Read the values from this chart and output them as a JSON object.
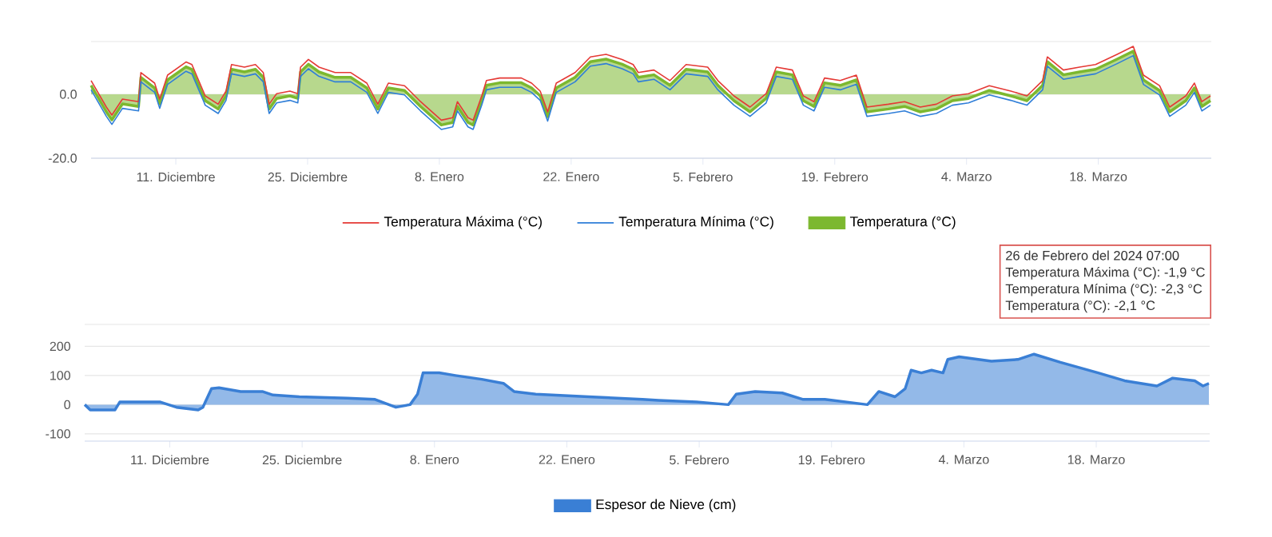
{
  "chart_data": [
    {
      "type": "area",
      "x": [
        "2023-12-02T00:00",
        "2023-12-03T15:00",
        "2023-12-04T05:00",
        "2023-12-05T08:00",
        "2023-12-07T01:00",
        "2023-12-07T07:00",
        "2023-12-08T18:00",
        "2023-12-09T07:00",
        "2023-12-10T03:00",
        "2023-12-12T02:00",
        "2023-12-12T17:00",
        "2023-12-14T03:00",
        "2023-12-15T12:00",
        "2023-12-16T08:00",
        "2023-12-16T22:00",
        "2023-12-18T07:00",
        "2023-12-19T11:00",
        "2023-12-20T07:00",
        "2023-12-20T22:00",
        "2023-12-21T17:00",
        "2023-12-23T03:00",
        "2023-12-23T23:00",
        "2023-12-24T06:00",
        "2023-12-25T02:00",
        "2023-12-26T05:00",
        "2023-12-27T22:00",
        "2023-12-29T14:00",
        "2023-12-31T07:00",
        "2024-01-01T11:00",
        "2024-01-02T14:00",
        "2024-01-04T07:00",
        "2024-01-06T00:00",
        "2024-01-08T05:00",
        "2024-01-09T10:00",
        "2024-01-09T22:00",
        "2024-01-11T01:00",
        "2024-01-11T14:00",
        "2024-01-12T12:00",
        "2024-01-13T00:00",
        "2024-01-14T10:00",
        "2024-01-16T17:00",
        "2024-01-17T19:00",
        "2024-01-18T17:00",
        "2024-01-19T12:00",
        "2024-01-20T10:00",
        "2024-01-22T10:00",
        "2024-01-24T01:00",
        "2024-01-25T17:00",
        "2024-01-27T10:00",
        "2024-01-28T14:00",
        "2024-01-29T03:00",
        "2024-01-30T19:00",
        "2024-02-01T12:00",
        "2024-02-03T05:00",
        "2024-02-05T12:00",
        "2024-02-06T14:00",
        "2024-02-08T07:00",
        "2024-02-10T00:00",
        "2024-02-11T17:00",
        "2024-02-12T19:00",
        "2024-02-14T12:00",
        "2024-02-15T16:00",
        "2024-02-16T19:00",
        "2024-02-17T22:00",
        "2024-02-19T14:00",
        "2024-02-21T07:00",
        "2024-02-22T10:00",
        "2024-02-24T17:00",
        "2024-02-26T10:00",
        "2024-02-28T02:00",
        "2024-02-29T19:00",
        "2024-03-02T12:00",
        "2024-03-04T05:00",
        "2024-03-06T10:00",
        "2024-03-08T17:00",
        "2024-03-10T10:00",
        "2024-03-12T02:00",
        "2024-03-12T14:00",
        "2024-03-14T07:00",
        "2024-03-16T00:00",
        "2024-03-17T17:00",
        "2024-03-20T00:00",
        "2024-03-21T17:00",
        "2024-03-22T19:00",
        "2024-03-24T12:00",
        "2024-03-25T14:00",
        "2024-03-27T07:00",
        "2024-03-28T05:00",
        "2024-03-29T00:00",
        "2024-03-29T22:00"
      ],
      "series": [
        {
          "name": "Temperatura Máxima (°C)",
          "type": "line",
          "color": "#e53935",
          "values": [
            4.3,
            -4,
            -6.5,
            -1.5,
            -2.3,
            6.8,
            3.5,
            -1.5,
            6,
            10.1,
            9.3,
            -0.5,
            -3.1,
            1,
            9.3,
            8.5,
            9.3,
            6.8,
            -3.1,
            0.2,
            1,
            0.2,
            8.5,
            10.9,
            8.5,
            6.8,
            6.8,
            3.5,
            -3.1,
            3.5,
            2.7,
            -2.3,
            -8.1,
            -7.3,
            -2.3,
            -7.3,
            -8.1,
            -0.5,
            4.3,
            5.1,
            5.1,
            3.5,
            1,
            -5.5,
            3.5,
            6.8,
            11.7,
            12.5,
            10.9,
            9.3,
            6.8,
            7.6,
            4.3,
            9.3,
            8.5,
            4.3,
            -0.5,
            -4,
            0.2,
            8.5,
            7.6,
            -0.5,
            -2.3,
            5.1,
            4.3,
            6,
            -4,
            -3.1,
            -2.3,
            -4,
            -3.1,
            -0.5,
            0.2,
            2.7,
            1,
            -0.5,
            4.3,
            11.7,
            7.6,
            8.5,
            9.3,
            12.5,
            15,
            6,
            2.7,
            -4,
            -0.5,
            3.5,
            -2.3,
            -0.5
          ]
        },
        {
          "name": "Temperatura Mínima (°C)",
          "type": "line",
          "color": "#2f7ed8",
          "values": [
            1.4,
            -6.9,
            -9.4,
            -4.4,
            -5.2,
            3.9,
            0.6,
            -4.4,
            3.1,
            7.2,
            6.4,
            -3.4,
            -6,
            -1.9,
            6.4,
            5.6,
            6.4,
            3.9,
            -6,
            -2.7,
            -1.9,
            -2.7,
            5.6,
            8,
            5.6,
            3.9,
            3.9,
            0.6,
            -6,
            0.6,
            -0.2,
            -5.2,
            -11,
            -10.2,
            -5.2,
            -10.2,
            -11,
            -3.4,
            1.4,
            2.2,
            2.2,
            0.6,
            -1.9,
            -8.4,
            0.6,
            3.9,
            8.8,
            9.6,
            8,
            6.4,
            3.9,
            4.7,
            1.4,
            6.4,
            5.6,
            1.4,
            -3.4,
            -6.9,
            -2.7,
            5.6,
            4.7,
            -3.4,
            -5.2,
            2.2,
            1.4,
            3.1,
            -6.9,
            -6,
            -5.2,
            -6.9,
            -6,
            -3.4,
            -2.7,
            -0.2,
            -1.9,
            -3.4,
            1.4,
            8.8,
            4.7,
            5.6,
            6.4,
            9.6,
            12.1,
            3.1,
            -0.2,
            -6.9,
            -3.4,
            0.6,
            -5.2,
            -3.4
          ]
        },
        {
          "name": "Temperatura (°C)",
          "type": "area",
          "color": "#7cb82f",
          "values": [
            2.8,
            -5.5,
            -8,
            -3,
            -3.8,
            5.3,
            2,
            -3,
            4.5,
            8.6,
            7.8,
            -2,
            -4.6,
            -0.5,
            7.8,
            7,
            7.8,
            5.3,
            -4.6,
            -1.3,
            -0.5,
            -1.3,
            7,
            9.4,
            7,
            5.3,
            5.3,
            2,
            -4.6,
            2,
            1.2,
            -3.8,
            -9.6,
            -8.8,
            -3.8,
            -8.8,
            -9.6,
            -2,
            2.8,
            3.6,
            3.6,
            2,
            -0.5,
            -7,
            2,
            5.3,
            10.2,
            11,
            9.4,
            7.8,
            5.3,
            6.1,
            2.8,
            7.8,
            7,
            2.8,
            -2,
            -5.5,
            -1.3,
            7,
            6.1,
            -2,
            -3.8,
            3.6,
            2.8,
            4.5,
            -5.5,
            -4.6,
            -3.8,
            -5.5,
            -4.6,
            -2,
            -1.3,
            1.2,
            -0.5,
            -2,
            2.8,
            10.2,
            6.1,
            7,
            7.8,
            11,
            13.5,
            4.5,
            1.2,
            -5.5,
            -2,
            2,
            -3.8,
            -2
          ]
        }
      ],
      "xlim": [
        "2023-12-02",
        "2024-03-30"
      ],
      "xticks": [
        {
          "value": "2023-12-11",
          "label": "11. Diciembre"
        },
        {
          "value": "2023-12-25",
          "label": "25. Diciembre"
        },
        {
          "value": "2024-01-08",
          "label": "8. Enero"
        },
        {
          "value": "2024-01-22",
          "label": "22. Enero"
        },
        {
          "value": "2024-02-05",
          "label": "5. Febrero"
        },
        {
          "value": "2024-02-19",
          "label": "19. Febrero"
        },
        {
          "value": "2024-03-04",
          "label": "4. Marzo"
        },
        {
          "value": "2024-03-18",
          "label": "18. Marzo"
        }
      ],
      "ylim": [
        -20,
        16.5
      ],
      "yticks": [
        {
          "value": -20,
          "label": "-20.0"
        },
        {
          "value": 0,
          "label": "0.0"
        }
      ],
      "grid": "y",
      "legend": "bottom",
      "annotations": [
        "26 de Febrero del 2024 07:00",
        "Temperatura Máxima (°C): -1,9 °C",
        "Temperatura Mínima (°C): -2,3 °C",
        "Temperatura (°C): -2,1 °C"
      ]
    },
    {
      "type": "area",
      "x": [
        "2023-12-02T00:00",
        "2023-12-02T14:00",
        "2023-12-05T05:00",
        "2023-12-05T17:00",
        "2023-12-07T17:00",
        "2023-12-10T00:00",
        "2023-12-11T17:00",
        "2023-12-14T00:00",
        "2023-12-14T12:00",
        "2023-12-15T10:00",
        "2023-12-16T05:00",
        "2023-12-18T12:00",
        "2023-12-20T19:00",
        "2023-12-21T22:00",
        "2023-12-24T17:00",
        "2023-12-29T19:00",
        "2024-01-01T17:00",
        "2024-01-03T22:00",
        "2024-01-05T10:00",
        "2024-01-06T05:00",
        "2024-01-06T19:00",
        "2024-01-08T12:00",
        "2024-01-10T05:00",
        "2024-01-13T00:00",
        "2024-01-15T07:00",
        "2024-01-16T10:00",
        "2024-01-18T17:00",
        "2024-01-24T07:00",
        "2024-01-30T00:00",
        "2024-01-31T17:00",
        "2024-02-04T17:00",
        "2024-02-08T02:00",
        "2024-02-08T22:00",
        "2024-02-10T22:00",
        "2024-02-13T19:00",
        "2024-02-16T00:00",
        "2024-02-18T07:00",
        "2024-02-22T19:00",
        "2024-02-24T00:00",
        "2024-02-25T17:00",
        "2024-02-26T19:00",
        "2024-02-27T10:00",
        "2024-02-28T12:00",
        "2024-02-29T14:00",
        "2024-03-01T19:00",
        "2024-03-02T07:00",
        "2024-03-03T12:00",
        "2024-03-06T22:00",
        "2024-03-09T17:00",
        "2024-03-11T10:00",
        "2024-03-14T05:00",
        "2024-03-18T05:00",
        "2024-03-21T00:00",
        "2024-03-24T10:00",
        "2024-03-26T02:00",
        "2024-03-28T10:00",
        "2024-03-29T07:00",
        "2024-03-29T22:00"
      ],
      "series": [
        {
          "name": "Espesor de Nieve (cm)",
          "color": "#3a7fd5",
          "values": [
            0,
            -18,
            -18,
            9,
            9,
            9,
            -9,
            -18,
            -9,
            55,
            58,
            45,
            45,
            33,
            27,
            22,
            18,
            -9,
            0,
            36,
            109,
            109,
            100,
            87,
            73,
            45,
            36,
            27,
            18,
            15,
            9,
            0,
            36,
            45,
            40,
            18,
            18,
            0,
            45,
            27,
            55,
            118,
            109,
            118,
            109,
            155,
            164,
            149,
            155,
            173,
            145,
            109,
            82,
            64,
            91,
            82,
            64,
            73
          ]
        }
      ],
      "xlim": [
        "2023-12-02",
        "2024-03-30"
      ],
      "xticks": [
        {
          "value": "2023-12-11",
          "label": "11. Diciembre"
        },
        {
          "value": "2023-12-25",
          "label": "25. Diciembre"
        },
        {
          "value": "2024-01-08",
          "label": "8. Enero"
        },
        {
          "value": "2024-01-22",
          "label": "22. Enero"
        },
        {
          "value": "2024-02-05",
          "label": "5. Febrero"
        },
        {
          "value": "2024-02-19",
          "label": "19. Febrero"
        },
        {
          "value": "2024-03-04",
          "label": "4. Marzo"
        },
        {
          "value": "2024-03-18",
          "label": "18. Marzo"
        }
      ],
      "ylim": [
        -125,
        275
      ],
      "yticks": [
        -100,
        0,
        100,
        200
      ],
      "grid": "y",
      "legend": "bottom"
    }
  ]
}
